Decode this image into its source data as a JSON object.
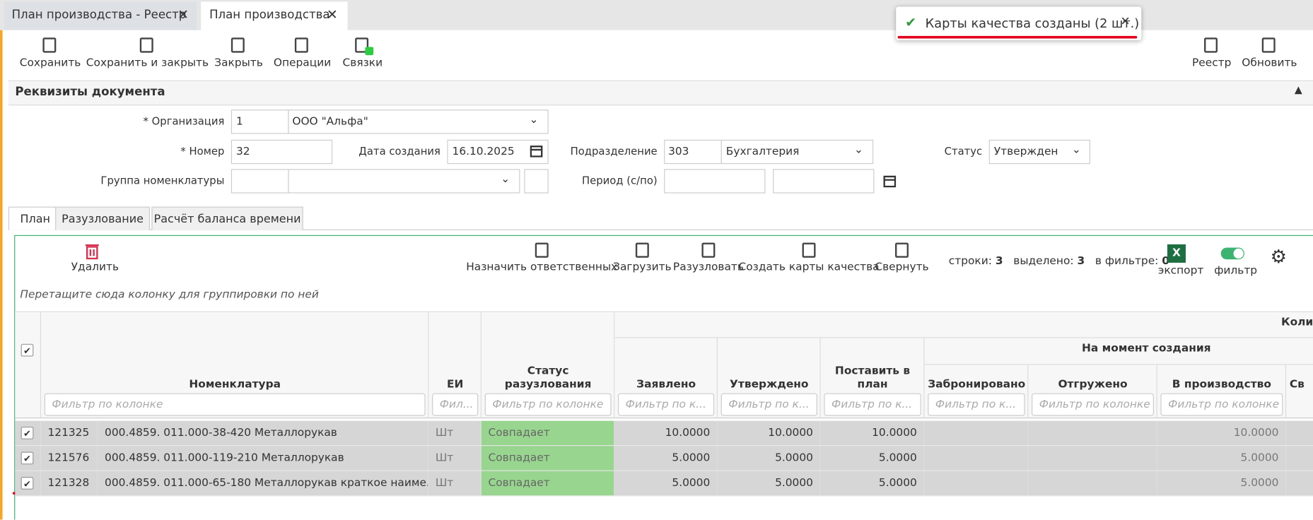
{
  "tabs": [
    "План производства - Реестр",
    "План производства"
  ],
  "toast": "Карты качества созданы (2 шт.)",
  "toolbar": [
    "Сохранить",
    "Сохранить и закрыть",
    "Закрыть",
    "Операции",
    "Связки"
  ],
  "toolbar_right": [
    "Реестр",
    "Обновить"
  ],
  "section_title": "Реквизиты документа",
  "form": {
    "org_label": "* Организация",
    "org_code": "1",
    "org_name": "ООО \"Альфа\"",
    "number_label": "* Номер",
    "number": "32",
    "date_label": "Дата создания",
    "date": "16.10.2025",
    "dept_label": "Подразделение",
    "dept_code": "303",
    "dept_name": "Бухгалтерия",
    "status_label": "Статус",
    "status": "Утвержден",
    "group_label": "Группа номенклатуры",
    "period_label": "Период (с/по)"
  },
  "subtabs": [
    "План",
    "Разузлование",
    "Расчёт баланса времени"
  ],
  "grid_toolbar": {
    "delete": "Удалить",
    "actions": [
      "Назначить ответственных",
      "Загрузить",
      "Разузловать",
      "Создать карты качества",
      "Свернуть"
    ],
    "rows_label": "строки:",
    "rows": "3",
    "selected_label": "выделено:",
    "selected": "3",
    "filtered_label": "в фильтре:",
    "filtered": "0",
    "export": "экспорт",
    "filter": "фильтр"
  },
  "group_hint": "Перетащите сюда колонку для группировки по ней",
  "table": {
    "group_top": "Коли",
    "group_moment": "На момент создания",
    "headers": [
      "Номенклатура",
      "ЕИ",
      "Статус разузлования",
      "Заявлено",
      "Утверждено",
      "Поставить в план",
      "Забронировано",
      "Отгружено",
      "В производство",
      "Св"
    ],
    "filters": [
      "Фильтр по колонке",
      "Фил...",
      "Фильтр по колонке",
      "Фильтр по к...",
      "Фильтр по к...",
      "Фильтр по к...",
      "Фильтр по к...",
      "Фильтр по колонке",
      "Фильтр по колонке"
    ],
    "rows": [
      {
        "id": "121325",
        "name": "000.4859. 011.000-38-420 Металлорукав",
        "unit": "Шт",
        "status": "Совпадает",
        "declared": "10.0000",
        "approved": "10.0000",
        "plan": "10.0000",
        "in_production": "10.0000"
      },
      {
        "id": "121576",
        "name": "000.4859. 011.000-119-210 Металлорукав",
        "unit": "Шт",
        "status": "Совпадает",
        "declared": "5.0000",
        "approved": "5.0000",
        "plan": "5.0000",
        "in_production": "5.0000"
      },
      {
        "id": "121328",
        "name": "000.4859. 011.000-65-180 Металлорукав краткое наиме...",
        "unit": "Шт",
        "status": "Совпадает",
        "declared": "5.0000",
        "approved": "5.0000",
        "plan": "5.0000",
        "in_production": "5.0000"
      }
    ]
  }
}
